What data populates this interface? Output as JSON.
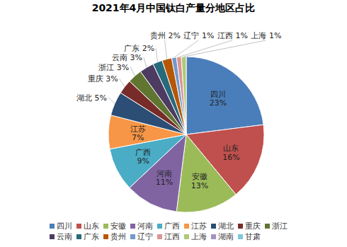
{
  "chart_data": {
    "type": "pie",
    "title": "2021年4月中国钛白产量分地区占比",
    "categories": [
      "四川",
      "山东",
      "安徽",
      "河南",
      "广西",
      "江苏",
      "湖北",
      "重庆",
      "浙江",
      "云南",
      "广东",
      "贵州",
      "辽宁",
      "江西",
      "上海",
      "湖南",
      "甘肃"
    ],
    "values": [
      23,
      16,
      13,
      11,
      9,
      7,
      5,
      3,
      3,
      3,
      2,
      2,
      1,
      1,
      1,
      0,
      0
    ],
    "value_labels": [
      "23%",
      "16%",
      "13%",
      "11%",
      "9%",
      "7%",
      "5%",
      "3%",
      "3%",
      "3%",
      "2%",
      "2%",
      "1%",
      "1%",
      "1%",
      null,
      null
    ],
    "colors": [
      "#4a7ebb",
      "#c0504d",
      "#9bbb59",
      "#8064a2",
      "#4bacc6",
      "#f79646",
      "#2c4d75",
      "#772c2a",
      "#5f7530",
      "#4d3b62",
      "#276a7c",
      "#b65708",
      "#729aca",
      "#d99694",
      "#afc97a",
      "#a493c0",
      "#7fc6d9"
    ],
    "data_labels": true,
    "legend": "bottom"
  }
}
